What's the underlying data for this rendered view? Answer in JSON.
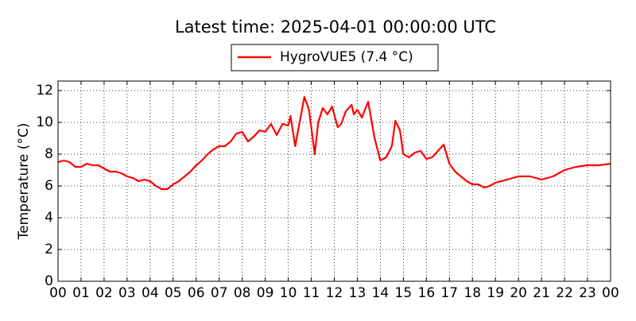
{
  "chart_data": {
    "type": "line",
    "title": "Latest time: 2025-04-01 00:00:00 UTC",
    "ylabel": "Temperature (°C)",
    "x": [
      0,
      0.25,
      0.5,
      0.75,
      1,
      1.25,
      1.5,
      1.75,
      2,
      2.25,
      2.5,
      2.75,
      3,
      3.25,
      3.5,
      3.75,
      4,
      4.25,
      4.5,
      4.75,
      5,
      5.25,
      5.5,
      5.75,
      6,
      6.25,
      6.5,
      6.75,
      7,
      7.25,
      7.5,
      7.75,
      8,
      8.25,
      8.5,
      8.75,
      9,
      9.25,
      9.5,
      9.75,
      10,
      10.1,
      10.3,
      10.7,
      10.9,
      11.15,
      11.3,
      11.5,
      11.7,
      11.9,
      12.15,
      12.3,
      12.5,
      12.75,
      12.85,
      13,
      13.2,
      13.47,
      13.75,
      14,
      14.25,
      14.5,
      14.65,
      14.85,
      15,
      15.25,
      15.5,
      15.75,
      16,
      16.25,
      16.5,
      16.75,
      17,
      17.25,
      17.5,
      17.75,
      18,
      18.25,
      18.5,
      18.75,
      19,
      19.5,
      20,
      20.5,
      21,
      21.5,
      22,
      22.5,
      23,
      23.5,
      24
    ],
    "series": [
      {
        "name": "HygroVUE5 (7.4 °C)",
        "color": "#ff0000",
        "values": [
          7.5,
          7.6,
          7.5,
          7.2,
          7.2,
          7.4,
          7.3,
          7.3,
          7.1,
          6.9,
          6.9,
          6.8,
          6.6,
          6.5,
          6.3,
          6.4,
          6.3,
          6.0,
          5.8,
          5.8,
          6.1,
          6.3,
          6.6,
          6.9,
          7.3,
          7.6,
          8.0,
          8.3,
          8.5,
          8.5,
          8.8,
          9.3,
          9.4,
          8.8,
          9.1,
          9.5,
          9.4,
          9.9,
          9.2,
          9.9,
          9.8,
          10.4,
          8.5,
          11.6,
          10.8,
          8.0,
          10.0,
          10.9,
          10.5,
          11.0,
          9.7,
          9.9,
          10.7,
          11.1,
          10.5,
          10.8,
          10.3,
          11.3,
          9.0,
          7.6,
          7.8,
          8.5,
          10.1,
          9.5,
          8.0,
          7.8,
          8.1,
          8.2,
          7.7,
          7.8,
          8.2,
          8.6,
          7.4,
          6.9,
          6.6,
          6.3,
          6.1,
          6.1,
          5.9,
          6.0,
          6.2,
          6.4,
          6.6,
          6.6,
          6.4,
          6.6,
          7.0,
          7.2,
          7.3,
          7.3,
          7.4
        ]
      }
    ],
    "xlim": [
      0,
      24
    ],
    "xticks": [
      {
        "value": 0,
        "label": "00"
      },
      {
        "value": 1,
        "label": "01"
      },
      {
        "value": 2,
        "label": "02"
      },
      {
        "value": 3,
        "label": "03"
      },
      {
        "value": 4,
        "label": "04"
      },
      {
        "value": 5,
        "label": "05"
      },
      {
        "value": 6,
        "label": "06"
      },
      {
        "value": 7,
        "label": "07"
      },
      {
        "value": 8,
        "label": "08"
      },
      {
        "value": 9,
        "label": "09"
      },
      {
        "value": 10,
        "label": "10"
      },
      {
        "value": 11,
        "label": "11"
      },
      {
        "value": 12,
        "label": "12"
      },
      {
        "value": 13,
        "label": "13"
      },
      {
        "value": 14,
        "label": "14"
      },
      {
        "value": 15,
        "label": "15"
      },
      {
        "value": 16,
        "label": "16"
      },
      {
        "value": 17,
        "label": "17"
      },
      {
        "value": 18,
        "label": "18"
      },
      {
        "value": 19,
        "label": "19"
      },
      {
        "value": 20,
        "label": "20"
      },
      {
        "value": 21,
        "label": "21"
      },
      {
        "value": 22,
        "label": "22"
      },
      {
        "value": 23,
        "label": "23"
      },
      {
        "value": 24,
        "label": "00"
      }
    ],
    "ylim": [
      0,
      12.6
    ],
    "yticks": [
      0,
      2,
      4,
      6,
      8,
      10,
      12
    ],
    "grid": true,
    "legend": "top"
  }
}
